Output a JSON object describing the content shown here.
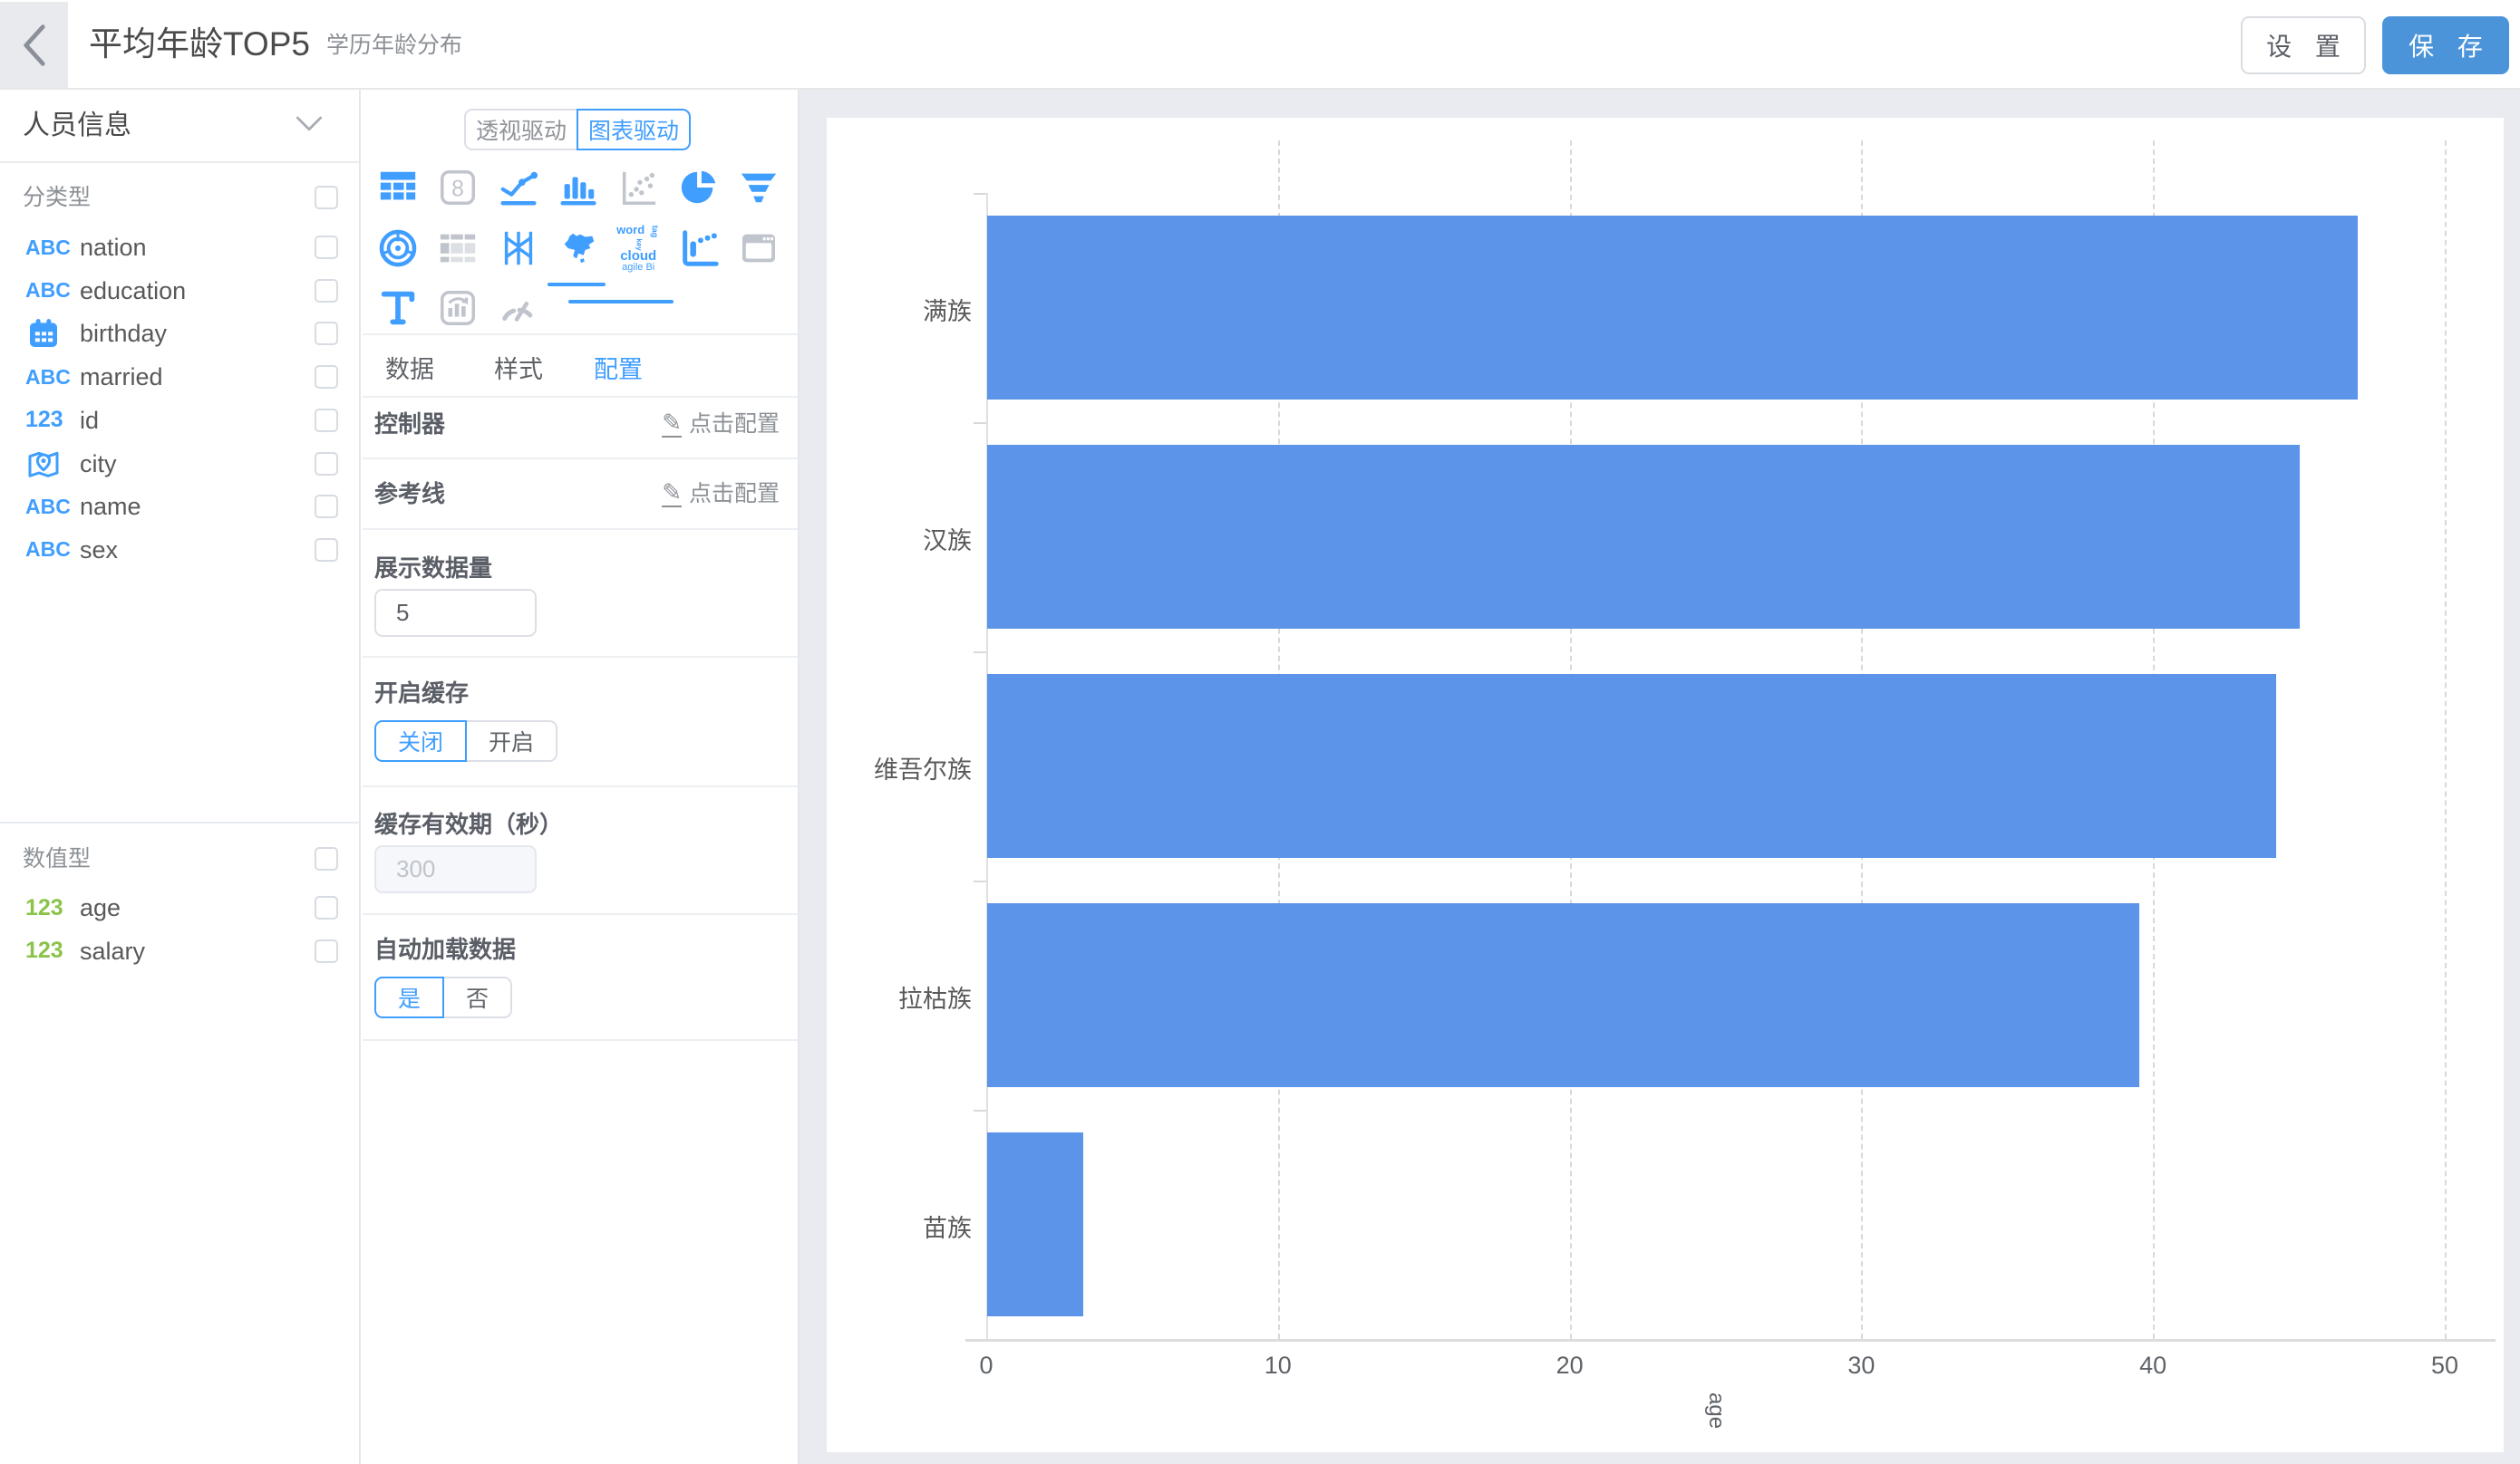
{
  "header": {
    "title": "平均年龄TOP5",
    "subtitle": "学历年龄分布",
    "settings_label": "设 置",
    "save_label": "保 存"
  },
  "sidebar": {
    "dataset_name": "人员信息",
    "categorical_section": "分类型",
    "numeric_section": "数值型",
    "categorical_fields": [
      {
        "icon": "ABC",
        "name": "nation"
      },
      {
        "icon": "ABC",
        "name": "education"
      },
      {
        "icon": "calendar",
        "name": "birthday"
      },
      {
        "icon": "ABC",
        "name": "married"
      },
      {
        "icon": "123",
        "name": "id"
      },
      {
        "icon": "map",
        "name": "city"
      },
      {
        "icon": "ABC",
        "name": "name"
      },
      {
        "icon": "ABC",
        "name": "sex"
      }
    ],
    "numeric_fields": [
      {
        "icon": "123",
        "name": "age"
      },
      {
        "icon": "123",
        "name": "salary"
      }
    ]
  },
  "panel": {
    "mode_left": "透视驱动",
    "mode_right": "图表驱动",
    "mode_selected": "图表驱动",
    "chart_types": [
      {
        "id": "table",
        "state": "enabled"
      },
      {
        "id": "number-card",
        "state": "disabled"
      },
      {
        "id": "line-chart",
        "state": "enabled"
      },
      {
        "id": "bar-chart",
        "state": "selected"
      },
      {
        "id": "scatter-chart",
        "state": "disabled"
      },
      {
        "id": "pie-chart",
        "state": "enabled"
      },
      {
        "id": "funnel-chart",
        "state": "enabled"
      },
      {
        "id": "radar-chart",
        "state": "enabled"
      },
      {
        "id": "pivot-table",
        "state": "disabled"
      },
      {
        "id": "k-line",
        "state": "enabled"
      },
      {
        "id": "china-map",
        "state": "enabled"
      },
      {
        "id": "word-cloud",
        "state": "enabled"
      },
      {
        "id": "waterfall",
        "state": "enabled"
      },
      {
        "id": "web-frame",
        "state": "disabled"
      },
      {
        "id": "text",
        "state": "enabled"
      },
      {
        "id": "indicator-card",
        "state": "disabled"
      },
      {
        "id": "gauge",
        "state": "disabled"
      }
    ],
    "tabs": [
      "数据",
      "样式",
      "配置"
    ],
    "active_tab": "配置",
    "rows": [
      {
        "label": "控制器",
        "action": "点击配置"
      },
      {
        "label": "参考线",
        "action": "点击配置"
      }
    ],
    "display_count_label": "展示数据量",
    "display_count_value": "5",
    "cache_label": "开启缓存",
    "cache_options": [
      "关闭",
      "开启"
    ],
    "cache_selected": "关闭",
    "cache_ttl_label": "缓存有效期（秒）",
    "cache_ttl_value": "300",
    "auto_load_label": "自动加载数据",
    "auto_load_options": [
      "是",
      "否"
    ],
    "auto_load_selected": "是",
    "word_cloud_icon_text": [
      "word",
      "cloud",
      "agile Bi"
    ]
  },
  "chart_data": {
    "type": "bar",
    "orientation": "horizontal",
    "categories": [
      "满族",
      "汉族",
      "维吾尔族",
      "拉枯族",
      "苗族"
    ],
    "values": [
      47,
      45,
      44.2,
      39.5,
      3.3
    ],
    "xlabel": "age",
    "ylabel": "",
    "xlim": [
      0,
      50
    ],
    "xticks": [
      0,
      10,
      20,
      30,
      40,
      50
    ],
    "grid": "dashed-vertical",
    "legend": "none",
    "bar_color": "#5b94e8"
  }
}
